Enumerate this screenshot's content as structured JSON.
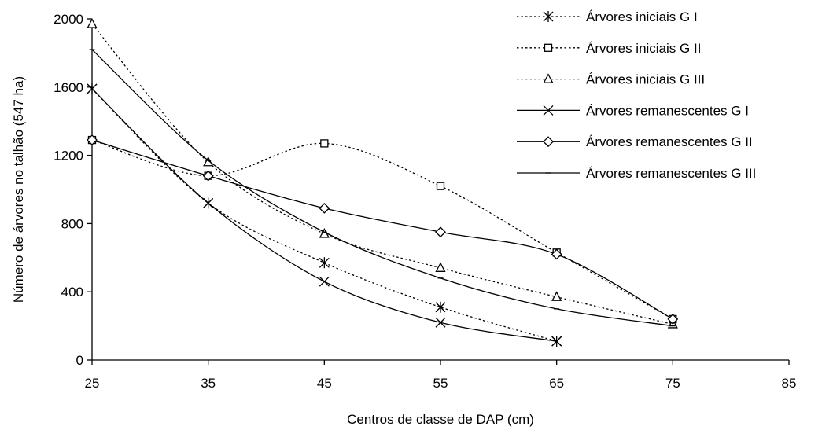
{
  "chart_data": {
    "type": "line",
    "xlabel": "Centros de classe de DAP (cm)",
    "ylabel": "Número de árvores no talhão (547 ha)",
    "xlim": [
      25,
      85
    ],
    "ylim": [
      0,
      2000
    ],
    "x_ticks": [
      "25",
      "35",
      "45",
      "55",
      "65",
      "75",
      "85"
    ],
    "y_ticks": [
      "0",
      "400",
      "800",
      "1200",
      "1600",
      "2000"
    ],
    "grid": false,
    "legend_position": "right",
    "series": [
      {
        "name": "Árvores iniciais G I",
        "style": "dotted",
        "marker": "asterisk",
        "x": [
          25,
          35,
          45,
          55,
          65
        ],
        "y": [
          1590,
          920,
          570,
          310,
          110
        ]
      },
      {
        "name": "Árvores iniciais G II",
        "style": "dotted",
        "marker": "square",
        "x": [
          25,
          35,
          45,
          55,
          65,
          75
        ],
        "y": [
          1290,
          1080,
          1270,
          1020,
          630,
          240
        ]
      },
      {
        "name": "Árvores iniciais G III",
        "style": "dotted",
        "marker": "triangle",
        "x": [
          25,
          35,
          45,
          55,
          65,
          75
        ],
        "y": [
          1970,
          1160,
          740,
          540,
          370,
          210
        ]
      },
      {
        "name": "Árvores remanescentes G I",
        "style": "solid",
        "marker": "x",
        "x": [
          25,
          35,
          45,
          55,
          65
        ],
        "y": [
          1590,
          920,
          460,
          220,
          110
        ]
      },
      {
        "name": "Árvores remanescentes G II",
        "style": "solid",
        "marker": "diamond",
        "x": [
          25,
          35,
          45,
          55,
          65,
          75
        ],
        "y": [
          1290,
          1080,
          890,
          750,
          620,
          240
        ]
      },
      {
        "name": "Árvores remanescentes G III",
        "style": "solid",
        "marker": "dash",
        "x": [
          25,
          35,
          45,
          55,
          65,
          75
        ],
        "y": [
          1820,
          1170,
          750,
          480,
          300,
          200
        ]
      }
    ]
  }
}
